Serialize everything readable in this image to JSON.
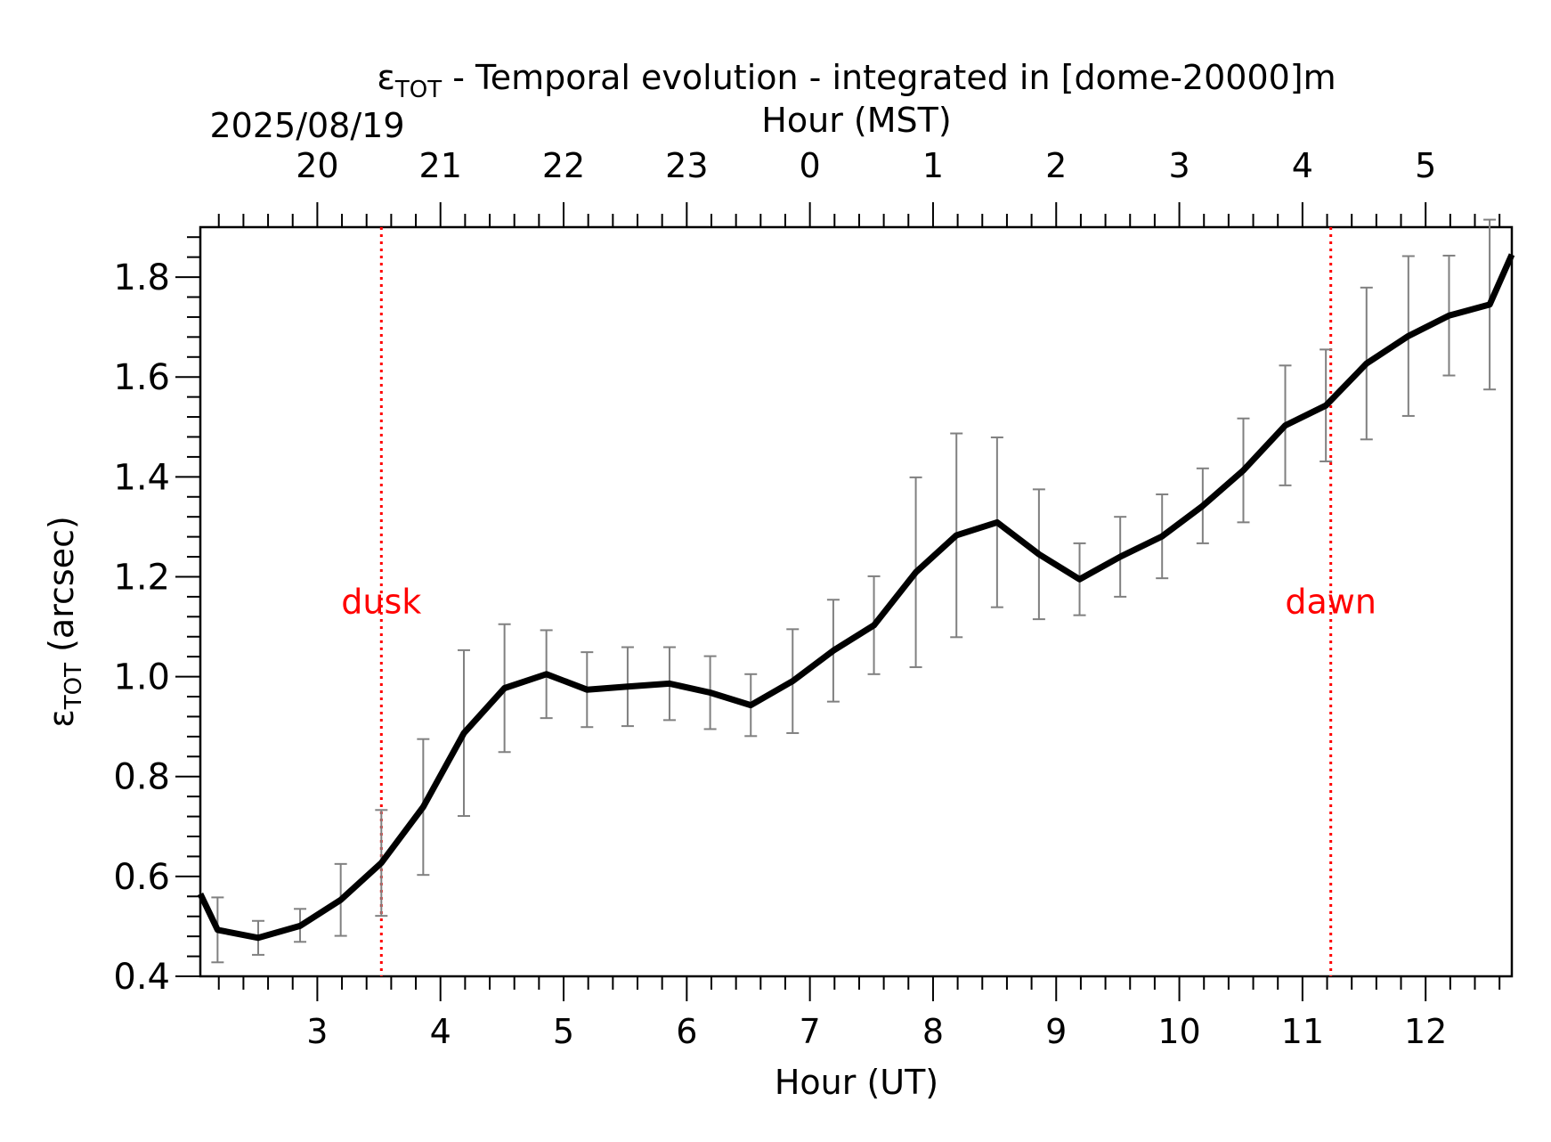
{
  "chart_data": {
    "type": "line",
    "title_main": "ε",
    "title_sub": "TOT",
    "title_rest": " - Temporal evolution - integrated in [dome-20000]m",
    "date_label": "2025/08/19",
    "top_axis_label": "Hour (MST)",
    "xlabel": "Hour (UT)",
    "ylabel_main": "ε",
    "ylabel_sub": "TOT",
    "ylabel_rest": " (arcsec)",
    "xlim": [
      2.05,
      12.7
    ],
    "ylim": [
      0.4,
      1.9
    ],
    "x_ticks": [
      3,
      4,
      5,
      6,
      7,
      8,
      9,
      10,
      11,
      12
    ],
    "x_tick_labels": [
      "3",
      "4",
      "5",
      "6",
      "7",
      "8",
      "9",
      "10",
      "11",
      "12"
    ],
    "y_ticks": [
      0.4,
      0.6,
      0.8,
      1.0,
      1.2,
      1.4,
      1.6,
      1.8
    ],
    "y_tick_labels": [
      "0.4",
      "0.6",
      "0.8",
      "1.0",
      "1.2",
      "1.4",
      "1.6",
      "1.8"
    ],
    "top_ticks_ut": [
      3,
      4,
      5,
      6,
      7,
      8,
      9,
      10,
      11,
      12
    ],
    "top_tick_labels": [
      "20",
      "21",
      "22",
      "23",
      "0",
      "1",
      "2",
      "3",
      "4",
      "5"
    ],
    "grid": false,
    "annotations": [
      {
        "label": "dusk",
        "x": 3.52,
        "y": 1.15,
        "color": "#ff0000"
      },
      {
        "label": "dawn",
        "x": 11.23,
        "y": 1.15,
        "color": "#ff0000"
      }
    ],
    "series": [
      {
        "color": "#000000",
        "errorbar_color": "#808080",
        "points": [
          {
            "x": 2.05,
            "y": 0.565
          },
          {
            "x": 2.19,
            "y": 0.493,
            "lo": 0.428,
            "hi": 0.558
          },
          {
            "x": 2.52,
            "y": 0.477,
            "lo": 0.443,
            "hi": 0.511
          },
          {
            "x": 2.86,
            "y": 0.501,
            "lo": 0.469,
            "hi": 0.535
          },
          {
            "x": 3.19,
            "y": 0.553,
            "lo": 0.481,
            "hi": 0.625
          },
          {
            "x": 3.52,
            "y": 0.627,
            "lo": 0.521,
            "hi": 0.733
          },
          {
            "x": 3.86,
            "y": 0.739,
            "lo": 0.603,
            "hi": 0.875
          },
          {
            "x": 4.19,
            "y": 0.887,
            "lo": 0.721,
            "hi": 1.053
          },
          {
            "x": 4.52,
            "y": 0.977,
            "lo": 0.849,
            "hi": 1.105
          },
          {
            "x": 4.86,
            "y": 1.005,
            "lo": 0.917,
            "hi": 1.093
          },
          {
            "x": 5.19,
            "y": 0.974,
            "lo": 0.899,
            "hi": 1.049
          },
          {
            "x": 5.52,
            "y": 0.98,
            "lo": 0.901,
            "hi": 1.059
          },
          {
            "x": 5.86,
            "y": 0.986,
            "lo": 0.913,
            "hi": 1.059
          },
          {
            "x": 6.19,
            "y": 0.968,
            "lo": 0.895,
            "hi": 1.041
          },
          {
            "x": 6.52,
            "y": 0.943,
            "lo": 0.881,
            "hi": 1.005
          },
          {
            "x": 6.86,
            "y": 0.991,
            "lo": 0.887,
            "hi": 1.095
          },
          {
            "x": 7.19,
            "y": 1.052,
            "lo": 0.95,
            "hi": 1.154
          },
          {
            "x": 7.52,
            "y": 1.103,
            "lo": 1.005,
            "hi": 1.201
          },
          {
            "x": 7.86,
            "y": 1.209,
            "lo": 1.019,
            "hi": 1.399
          },
          {
            "x": 8.19,
            "y": 1.283,
            "lo": 1.079,
            "hi": 1.487
          },
          {
            "x": 8.52,
            "y": 1.309,
            "lo": 1.139,
            "hi": 1.479
          },
          {
            "x": 8.86,
            "y": 1.245,
            "lo": 1.115,
            "hi": 1.375
          },
          {
            "x": 9.19,
            "y": 1.195,
            "lo": 1.123,
            "hi": 1.267
          },
          {
            "x": 9.52,
            "y": 1.24,
            "lo": 1.16,
            "hi": 1.32
          },
          {
            "x": 9.86,
            "y": 1.281,
            "lo": 1.197,
            "hi": 1.365
          },
          {
            "x": 10.19,
            "y": 1.342,
            "lo": 1.267,
            "hi": 1.417
          },
          {
            "x": 10.52,
            "y": 1.413,
            "lo": 1.309,
            "hi": 1.517
          },
          {
            "x": 10.86,
            "y": 1.503,
            "lo": 1.383,
            "hi": 1.623
          },
          {
            "x": 11.19,
            "y": 1.543,
            "lo": 1.431,
            "hi": 1.655
          },
          {
            "x": 11.52,
            "y": 1.627,
            "lo": 1.475,
            "hi": 1.779
          },
          {
            "x": 11.86,
            "y": 1.682,
            "lo": 1.522,
            "hi": 1.842
          },
          {
            "x": 12.19,
            "y": 1.723,
            "lo": 1.603,
            "hi": 1.843
          },
          {
            "x": 12.52,
            "y": 1.745,
            "lo": 1.575,
            "hi": 1.915
          },
          {
            "x": 12.7,
            "y": 1.845
          }
        ]
      }
    ]
  }
}
